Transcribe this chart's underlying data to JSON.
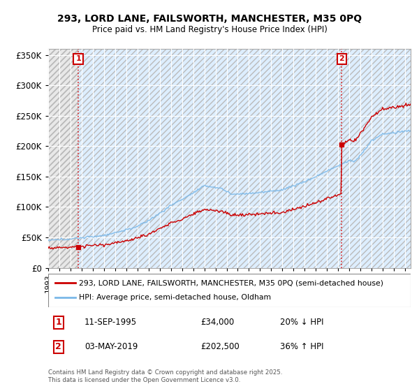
{
  "title1": "293, LORD LANE, FAILSWORTH, MANCHESTER, M35 0PQ",
  "title2": "Price paid vs. HM Land Registry's House Price Index (HPI)",
  "legend_line1": "293, LORD LANE, FAILSWORTH, MANCHESTER, M35 0PQ (semi-detached house)",
  "legend_line2": "HPI: Average price, semi-detached house, Oldham",
  "annotation1_date": "11-SEP-1995",
  "annotation1_price": "£34,000",
  "annotation1_hpi": "20% ↓ HPI",
  "annotation2_date": "03-MAY-2019",
  "annotation2_price": "£202,500",
  "annotation2_hpi": "36% ↑ HPI",
  "footer": "Contains HM Land Registry data © Crown copyright and database right 2025.\nThis data is licensed under the Open Government Licence v3.0.",
  "sale1_x": 1995.7,
  "sale1_y": 34000,
  "sale2_x": 2019.33,
  "sale2_y": 202500,
  "hpi_color": "#7ab8e8",
  "price_color": "#cc0000",
  "plot_bg_color": "#ddeeff",
  "ylim": [
    0,
    360000
  ],
  "xlim_start": 1993.0,
  "xlim_end": 2025.5
}
